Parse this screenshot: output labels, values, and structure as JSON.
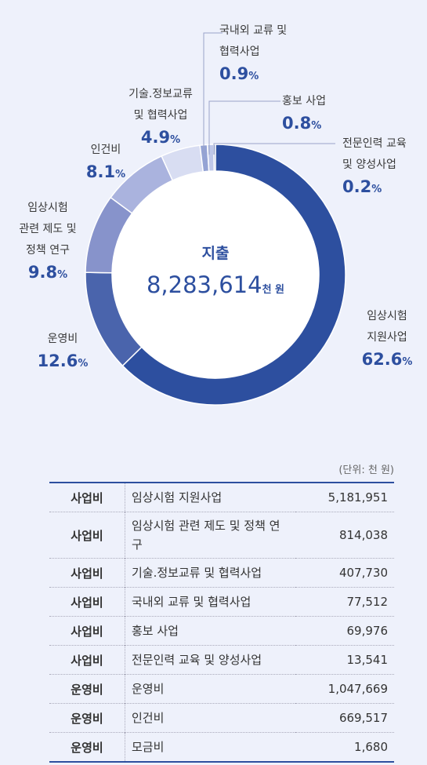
{
  "chart_data": {
    "type": "pie",
    "donut": true,
    "title": "지출",
    "total": "8,283,614",
    "total_unit": "천 원",
    "slices": [
      {
        "label": "임상시험\n지원사업",
        "value": 62.6,
        "pct_text": "62.6",
        "color": "#2d4f9f"
      },
      {
        "label": "운영비",
        "value": 12.6,
        "pct_text": "12.6",
        "color": "#4a64ac"
      },
      {
        "label": "임상시험\n관련 제도 및\n정책 연구",
        "value": 9.8,
        "pct_text": "9.8",
        "color": "#8793cb"
      },
      {
        "label": "인건비",
        "value": 8.1,
        "pct_text": "8.1",
        "color": "#aab3de"
      },
      {
        "label": "기술.정보교류\n및 협력사업",
        "value": 4.9,
        "pct_text": "4.9",
        "color": "#d8ddf2"
      },
      {
        "label": "국내외 교류 및\n협력사업",
        "value": 0.9,
        "pct_text": "0.9",
        "color": "#94a3d4"
      },
      {
        "label": "홍보 사업",
        "value": 0.8,
        "pct_text": "0.8",
        "color": "#bfc8e9"
      },
      {
        "label": "전문인력 교육\n및 양성사업",
        "value": 0.2,
        "pct_text": "0.2",
        "color": "#5570b5"
      }
    ],
    "pct_symbol": "%"
  },
  "table": {
    "unit": "(단위: 천 원)",
    "rows": [
      {
        "category": "사업비",
        "item": "임상시험 지원사업",
        "value": "5,181,951"
      },
      {
        "category": "사업비",
        "item": "임상시험 관련 제도 및 정책 연구",
        "value": "814,038"
      },
      {
        "category": "사업비",
        "item": "기술.정보교류 및 협력사업",
        "value": "407,730"
      },
      {
        "category": "사업비",
        "item": "국내외 교류 및 협력사업",
        "value": "77,512"
      },
      {
        "category": "사업비",
        "item": "홍보 사업",
        "value": "69,976"
      },
      {
        "category": "사업비",
        "item": "전문인력 교육 및 양성사업",
        "value": "13,541"
      },
      {
        "category": "운영비",
        "item": "운영비",
        "value": "1,047,669"
      },
      {
        "category": "운영비",
        "item": "인건비",
        "value": "669,517"
      },
      {
        "category": "운영비",
        "item": "모금비",
        "value": "1,680"
      }
    ]
  }
}
